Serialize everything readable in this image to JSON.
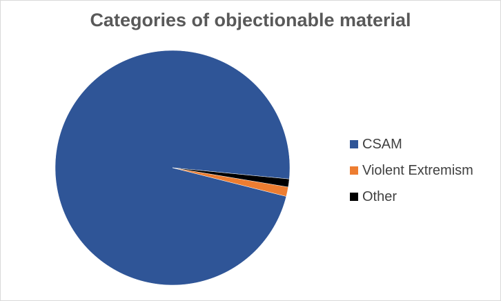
{
  "chart_data": {
    "type": "pie",
    "title": "Categories of objectionable material",
    "categories": [
      "CSAM",
      "Violent Extremism",
      "Other"
    ],
    "values": [
      97.6,
      1.3,
      1.1
    ],
    "colors": [
      "#2F5597",
      "#ED7D31",
      "#000000"
    ],
    "legend_position": "right"
  }
}
